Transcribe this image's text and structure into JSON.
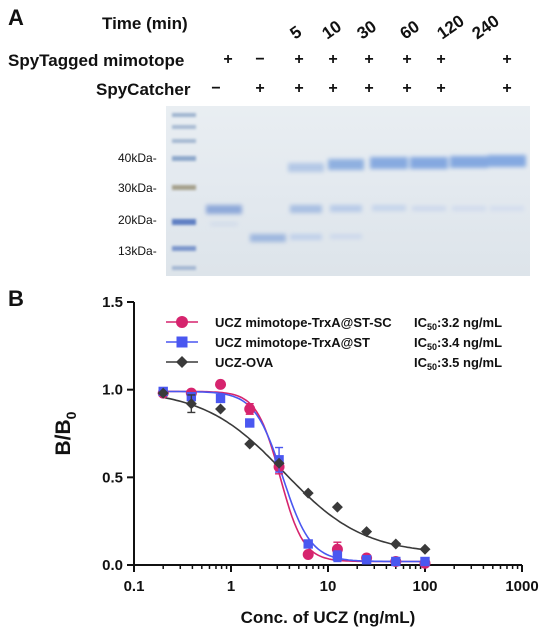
{
  "panel_a": {
    "letter": "A",
    "time_label": "Time (min)",
    "times": [
      "5",
      "10",
      "30",
      "60",
      "120",
      "240"
    ],
    "rows": [
      {
        "label": "SpyTagged mimotope",
        "signs": [
          "+",
          "−",
          "+",
          "+",
          "+",
          "+",
          "+",
          "+"
        ]
      },
      {
        "label": "SpyCatcher",
        "signs": [
          "−",
          "+",
          "+",
          "+",
          "+",
          "+",
          "+",
          "+"
        ]
      }
    ],
    "markers": [
      "40kDa-",
      "30kDa-",
      "20kDa-",
      "13kDa-"
    ]
  },
  "panel_b": {
    "letter": "B",
    "legend": [
      {
        "name": "UCZ mimotope-TrxA@ST-SC",
        "ic50_prefix": "IC",
        "ic50_sub": "50",
        "ic50_value": ":3.2 ng/mL",
        "color": "#d6246e",
        "marker": "circle"
      },
      {
        "name": "UCZ mimotope-TrxA@ST",
        "ic50_prefix": "IC",
        "ic50_sub": "50",
        "ic50_value": ":3.4 ng/mL",
        "color": "#4a57f0",
        "marker": "square"
      },
      {
        "name": "UCZ-OVA",
        "ic50_prefix": "IC",
        "ic50_sub": "50",
        "ic50_value": ":3.5 ng/mL",
        "color": "#3a3a3a",
        "marker": "diamond"
      }
    ]
  },
  "chart_data": {
    "type": "scatter",
    "title": "",
    "xlabel": "Conc. of UCZ (ng/mL)",
    "ylabel_main": "B/B",
    "ylabel_sub": "0",
    "xscale": "log",
    "xlim": [
      0.1,
      1000
    ],
    "ylim": [
      0.0,
      1.5
    ],
    "xticks": [
      "0.1",
      "1",
      "10",
      "100",
      "1000"
    ],
    "yticks": [
      "0.0",
      "0.5",
      "1.0",
      "1.5"
    ],
    "grid": false,
    "legend_position": "top-right",
    "series": [
      {
        "name": "UCZ mimotope-TrxA@ST-SC",
        "color": "#d6246e",
        "marker": "circle",
        "x": [
          0.2,
          0.39,
          0.78,
          1.56,
          3.13,
          6.25,
          12.5,
          25,
          50,
          100
        ],
        "y": [
          0.98,
          0.98,
          1.03,
          0.89,
          0.56,
          0.06,
          0.09,
          0.04,
          0.02,
          0.01
        ],
        "err": [
          0.0,
          0.0,
          0.0,
          0.03,
          0.04,
          0.0,
          0.04,
          0.0,
          0.0,
          0.0
        ],
        "fit": {
          "top": 0.99,
          "bottom": 0.02,
          "ic50": 3.2,
          "hill": 3.6
        }
      },
      {
        "name": "UCZ mimotope-TrxA@ST",
        "color": "#4a57f0",
        "marker": "square",
        "x": [
          0.2,
          0.39,
          0.78,
          1.56,
          3.13,
          6.25,
          12.5,
          25,
          50,
          100
        ],
        "y": [
          0.99,
          0.96,
          0.95,
          0.81,
          0.6,
          0.12,
          0.05,
          0.03,
          0.02,
          0.02
        ],
        "err": [
          0.0,
          0.0,
          0.0,
          0.0,
          0.07,
          0.0,
          0.03,
          0.0,
          0.0,
          0.0
        ],
        "fit": {
          "top": 0.99,
          "bottom": 0.02,
          "ic50": 3.4,
          "hill": 3.0
        }
      },
      {
        "name": "UCZ-OVA",
        "color": "#3a3a3a",
        "marker": "diamond",
        "x": [
          0.2,
          0.39,
          0.78,
          1.56,
          3.13,
          6.25,
          12.5,
          25,
          50,
          100
        ],
        "y": [
          0.98,
          0.92,
          0.89,
          0.69,
          0.58,
          0.41,
          0.33,
          0.19,
          0.12,
          0.09
        ],
        "err": [
          0.0,
          0.05,
          0.0,
          0.0,
          0.0,
          0.0,
          0.0,
          0.0,
          0.0,
          0.0
        ],
        "fit": {
          "top": 1.0,
          "bottom": 0.06,
          "ic50": 3.5,
          "hill": 1.05
        }
      }
    ]
  }
}
